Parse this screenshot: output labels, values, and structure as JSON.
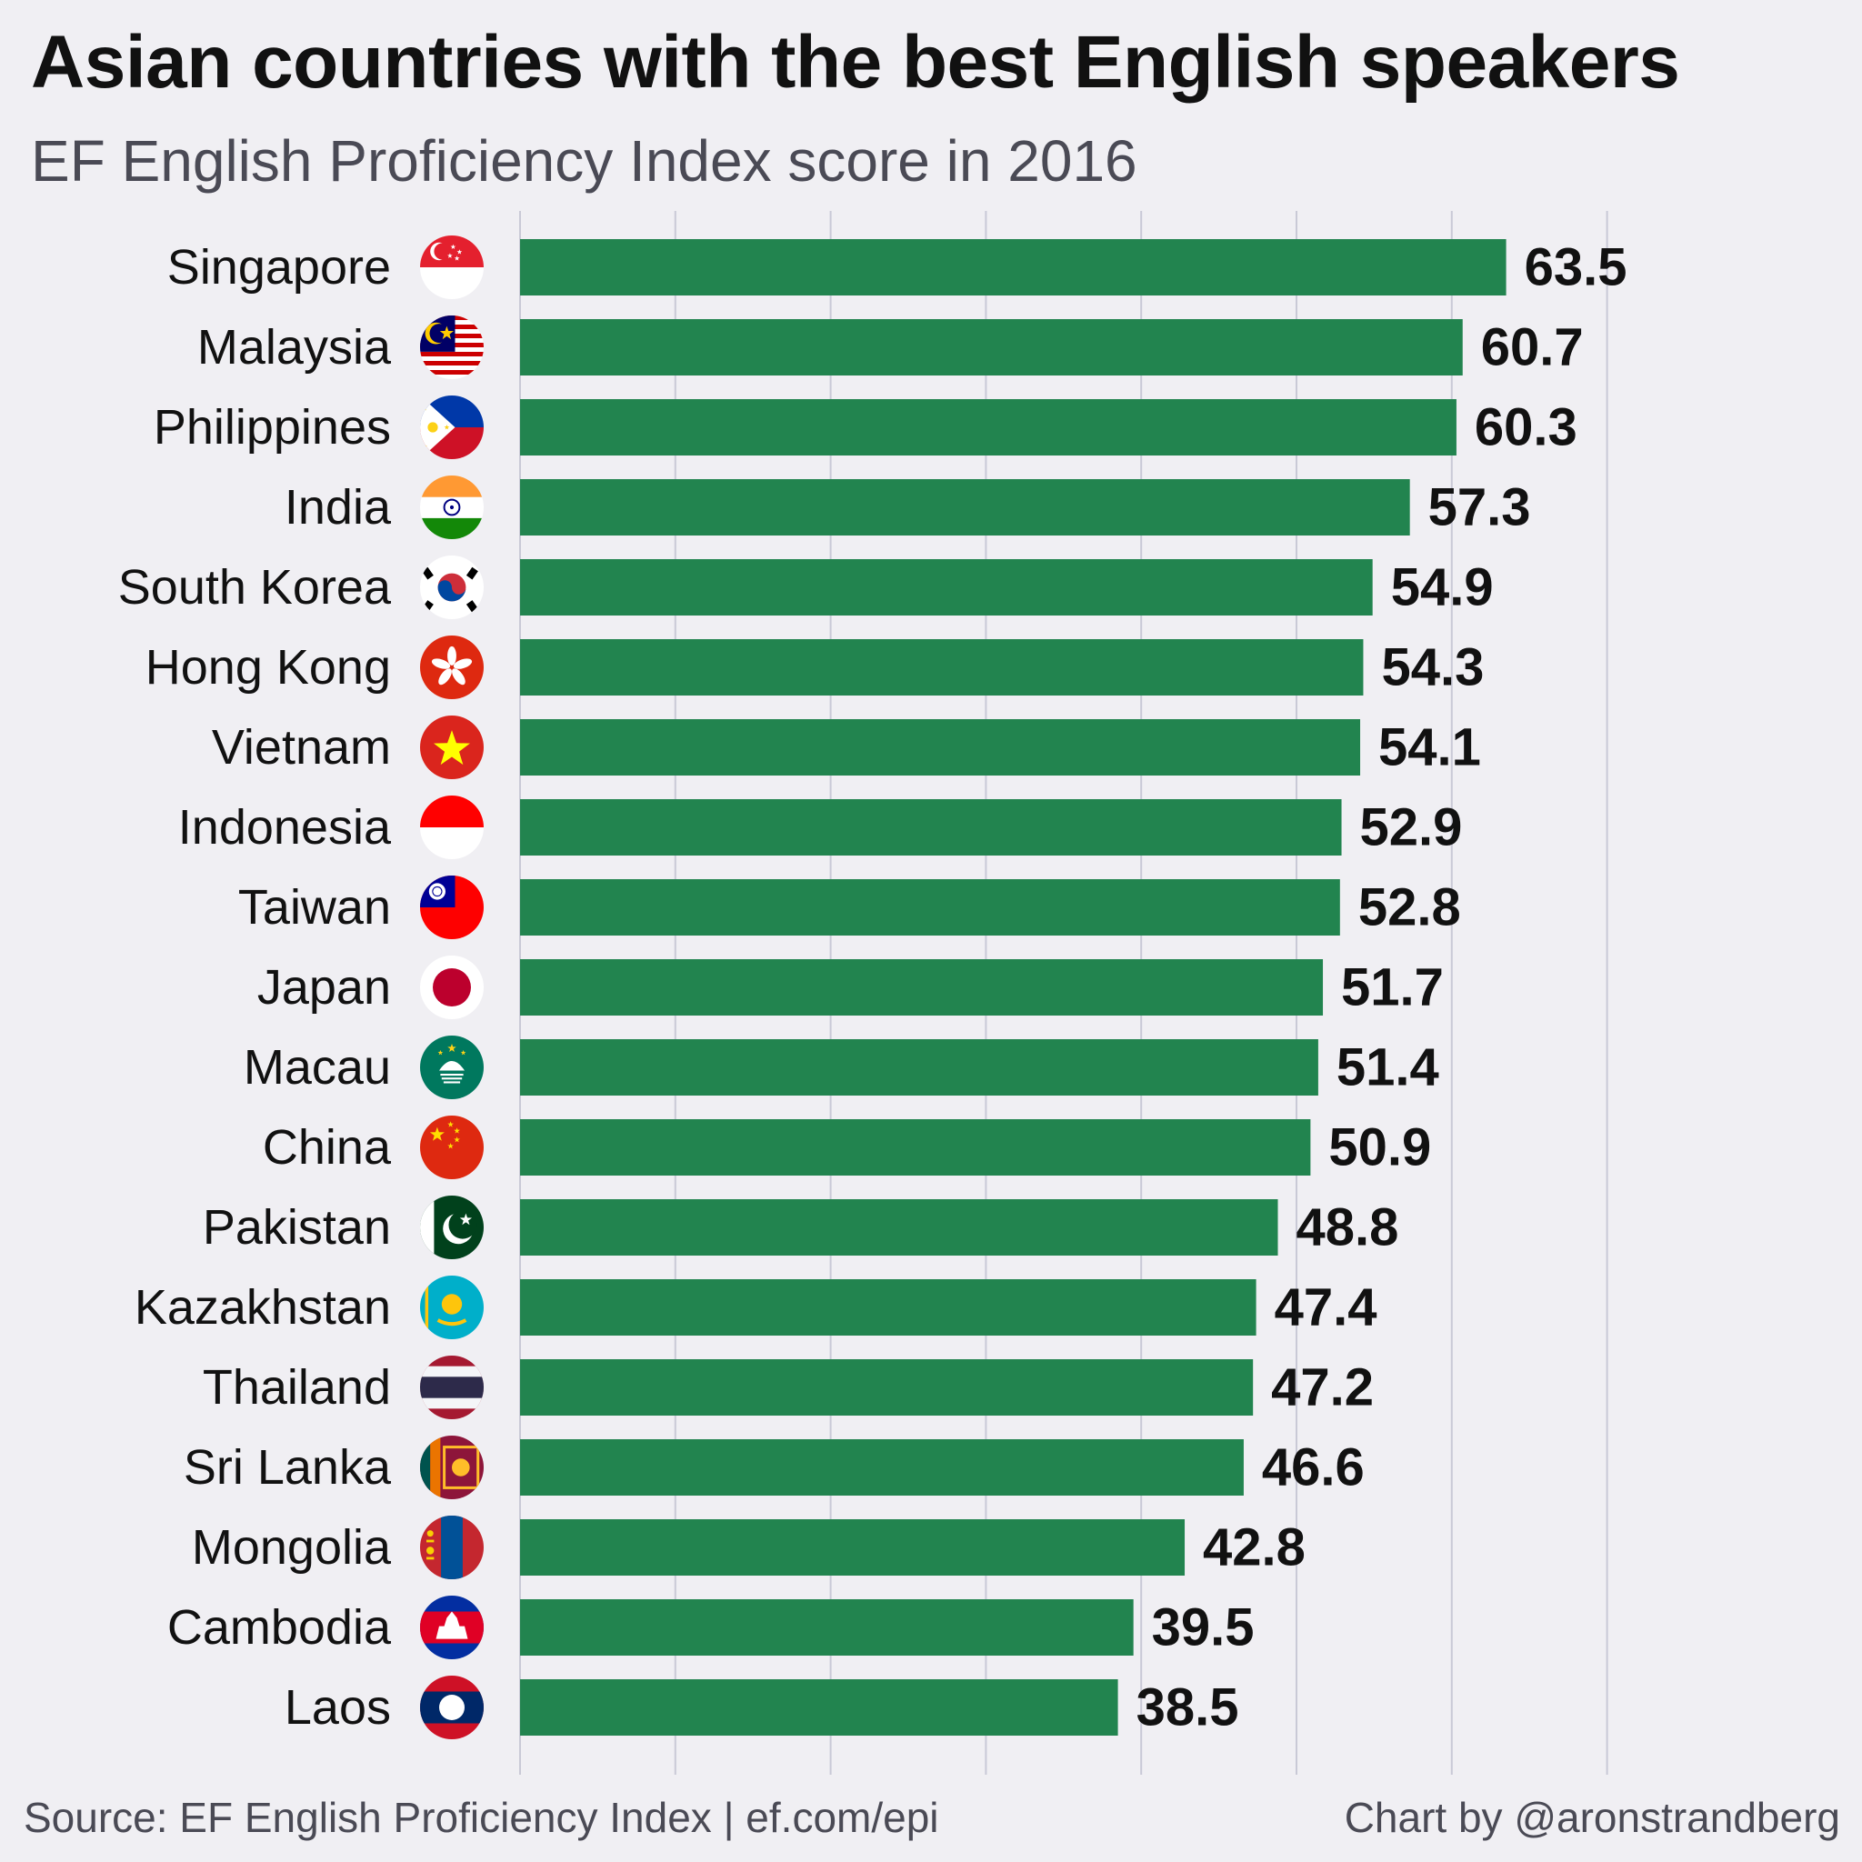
{
  "title": "Asian countries with the best English speakers",
  "subtitle": "EF English Proficiency Index score in 2016",
  "footer": {
    "source": "Source: EF English Proficiency Index | ef.com/epi",
    "credit": "Chart by @aronstrandberg"
  },
  "colors": {
    "bar": "#22844f",
    "grid": "#c9c9d6",
    "label": "#111111",
    "background": "#f0eff3"
  },
  "chart_data": {
    "type": "bar",
    "orientation": "horizontal",
    "categories": [
      "Singapore",
      "Malaysia",
      "Philippines",
      "India",
      "South Korea",
      "Hong Kong",
      "Vietnam",
      "Indonesia",
      "Taiwan",
      "Japan",
      "Macau",
      "China",
      "Pakistan",
      "Kazakhstan",
      "Thailand",
      "Sri Lanka",
      "Mongolia",
      "Cambodia",
      "Laos"
    ],
    "values": [
      63.5,
      60.7,
      60.3,
      57.3,
      54.9,
      54.3,
      54.1,
      52.9,
      52.8,
      51.7,
      51.4,
      50.9,
      48.8,
      47.4,
      47.2,
      46.6,
      42.8,
      39.5,
      38.5
    ],
    "value_labels": [
      "63.5",
      "60.7",
      "60.3",
      "57.3",
      "54.9",
      "54.3",
      "54.1",
      "52.9",
      "52.8",
      "51.7",
      "51.4",
      "50.9",
      "48.8",
      "47.4",
      "47.2",
      "46.6",
      "42.8",
      "39.5",
      "38.5"
    ],
    "flag_icons": [
      "singapore-flag-icon",
      "malaysia-flag-icon",
      "philippines-flag-icon",
      "india-flag-icon",
      "south-korea-flag-icon",
      "hong-kong-flag-icon",
      "vietnam-flag-icon",
      "indonesia-flag-icon",
      "taiwan-flag-icon",
      "japan-flag-icon",
      "macau-flag-icon",
      "china-flag-icon",
      "pakistan-flag-icon",
      "kazakhstan-flag-icon",
      "thailand-flag-icon",
      "sri-lanka-flag-icon",
      "mongolia-flag-icon",
      "cambodia-flag-icon",
      "laos-flag-icon"
    ],
    "xlim": [
      0,
      70
    ],
    "grid": true,
    "xlabel": "",
    "ylabel": ""
  }
}
